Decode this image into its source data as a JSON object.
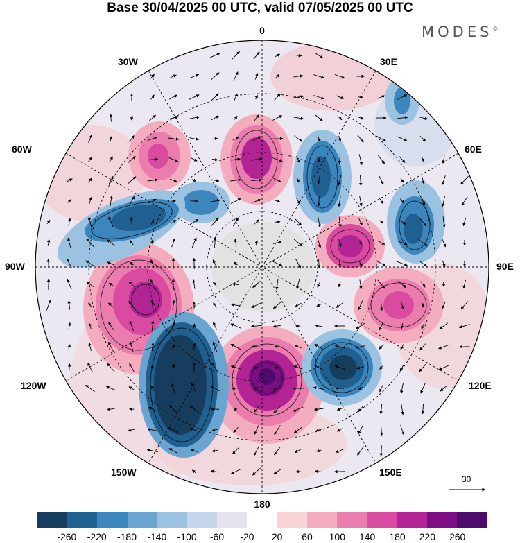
{
  "title": "Base 30/04/2025 00 UTC, valid 07/05/2025 00 UTC",
  "brand": "MODES",
  "brand_mark": "©",
  "longitude_labels": {
    "top": "0",
    "top_right": "30E",
    "right_upper": "60E",
    "right": "90E",
    "right_lower": "120E",
    "bottom_right": "150E",
    "bottom": "180",
    "bottom_left": "150W",
    "left_lower": "120W",
    "left": "90W",
    "left_upper": "60W",
    "top_left": "30W"
  },
  "reference_vector": {
    "label": "30"
  },
  "colorbar": {
    "colors": [
      "#173d5e",
      "#1f6090",
      "#3b86bd",
      "#6aa5d2",
      "#9cc2e2",
      "#c6d6ec",
      "#e6e3f1",
      "#ffffff",
      "#f8d3d7",
      "#f3adbe",
      "#ea7cae",
      "#d94aa1",
      "#b22394",
      "#7d0d83",
      "#4e0b6b"
    ],
    "labels": [
      "-260",
      "-220",
      "-180",
      "-140",
      "-100",
      "-60",
      "-20",
      "20",
      "60",
      "100",
      "140",
      "180",
      "220",
      "260"
    ]
  }
}
